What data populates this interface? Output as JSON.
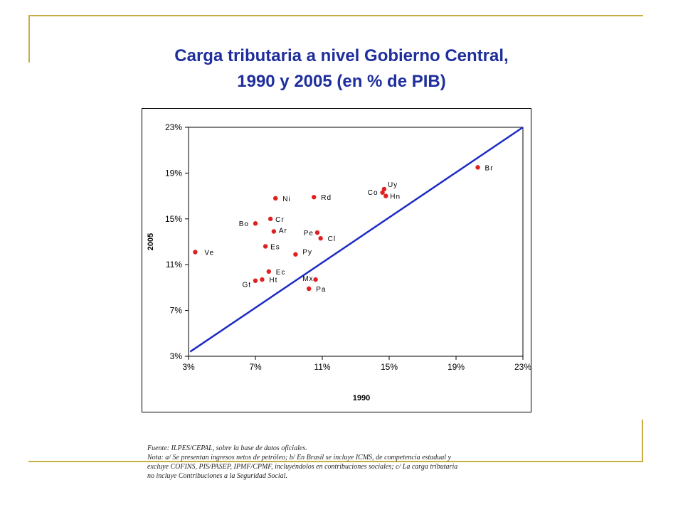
{
  "title": {
    "line1": "Carga tributaria a nivel Gobierno Central,",
    "line2": "1990 y 2005 (en % de PIB)"
  },
  "colors": {
    "title": "#1f2f9c",
    "frame_accent": "#c8ae44",
    "points": "#e02020",
    "trend_line": "#1c2bc4"
  },
  "chart_data": {
    "type": "scatter",
    "xlabel": "1990",
    "ylabel": "2005",
    "xlim": [
      3,
      23
    ],
    "ylim": [
      3,
      23
    ],
    "x_ticks": [
      "3%",
      "7%",
      "11%",
      "15%",
      "19%",
      "23%"
    ],
    "y_ticks": [
      "3%",
      "7%",
      "11%",
      "15%",
      "19%",
      "23%"
    ],
    "grid": false,
    "legend": "none",
    "reference_line": {
      "from": [
        3.1,
        3.4
      ],
      "to": [
        23,
        23.0
      ]
    },
    "points": [
      {
        "label": "Br",
        "x": 20.3,
        "y": 19.5
      },
      {
        "label": "Uy",
        "x": 14.7,
        "y": 17.6
      },
      {
        "label": "Co",
        "x": 14.6,
        "y": 17.3
      },
      {
        "label": "Hn",
        "x": 14.8,
        "y": 17.0
      },
      {
        "label": "Ni",
        "x": 8.2,
        "y": 16.8
      },
      {
        "label": "Rd",
        "x": 10.5,
        "y": 16.9
      },
      {
        "label": "Cr",
        "x": 7.9,
        "y": 15.0
      },
      {
        "label": "Bo",
        "x": 7.0,
        "y": 14.6
      },
      {
        "label": "Ar",
        "x": 8.1,
        "y": 13.9
      },
      {
        "label": "Pe",
        "x": 10.7,
        "y": 13.8
      },
      {
        "label": "Cl",
        "x": 10.9,
        "y": 13.3
      },
      {
        "label": "Es",
        "x": 7.6,
        "y": 12.6
      },
      {
        "label": "Py",
        "x": 9.4,
        "y": 11.9
      },
      {
        "label": "Ve",
        "x": 3.4,
        "y": 12.1
      },
      {
        "label": "Ec",
        "x": 7.8,
        "y": 10.4
      },
      {
        "label": "Ht",
        "x": 7.4,
        "y": 9.7
      },
      {
        "label": "Gt",
        "x": 7.0,
        "y": 9.6
      },
      {
        "label": "Mx",
        "x": 10.6,
        "y": 9.7
      },
      {
        "label": "Pa",
        "x": 10.2,
        "y": 8.9
      }
    ]
  },
  "footer": {
    "line1": "Fuente: ILPES/CEPAL, sobre la base de datos oficiales.",
    "line2": "Nota: a/ Se presentan ingresos netos de petróleo; b/ En Brasil se incluye ICMS, de competencia estadual y",
    "line3": "excluye COFINS, PIS/PASEP, IPMF/CPMF, incluyéndolos en contribuciones sociales; c/ La carga tributaria",
    "line4": "no incluye Contribuciones a la Seguridad Social."
  }
}
